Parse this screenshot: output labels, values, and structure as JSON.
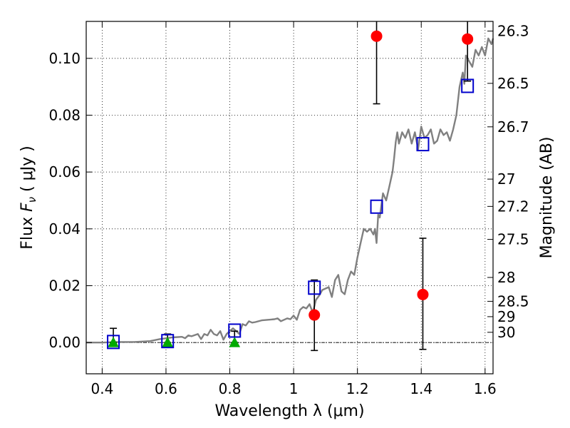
{
  "chart_data": {
    "type": "scatter",
    "xlabel": "Wavelength  λ (μm)",
    "ylabel": "Flux  F_ν  ( μJy )",
    "ylabel_parts": {
      "pre": "Flux  ",
      "var": "F",
      "sub": "ν",
      "post": "  ( μJy )"
    },
    "y2label": "Magnitude (AB)",
    "xlim": [
      0.35,
      1.625
    ],
    "ylim": [
      -0.011,
      0.113
    ],
    "grid": true,
    "x_ticks": [
      0.4,
      0.6,
      0.8,
      1.0,
      1.2,
      1.4,
      1.6
    ],
    "x_tick_labels": [
      "0.4",
      "0.6",
      "0.8",
      "1",
      "1.2",
      "1.4",
      "1.6"
    ],
    "y_ticks": [
      0.0,
      0.02,
      0.04,
      0.06,
      0.08,
      0.1
    ],
    "y_tick_labels": [
      "0.00",
      "0.02",
      "0.04",
      "0.06",
      "0.08",
      "0.10"
    ],
    "mag_ticks": [
      {
        "label": "26.3",
        "flux": 0.1096
      },
      {
        "label": "26.5",
        "flux": 0.0912
      },
      {
        "label": "26.7",
        "flux": 0.0759
      },
      {
        "label": "27",
        "flux": 0.0575
      },
      {
        "label": "27.2",
        "flux": 0.0479
      },
      {
        "label": "27.5",
        "flux": 0.0363
      },
      {
        "label": "28",
        "flux": 0.0229
      },
      {
        "label": "28.5",
        "flux": 0.0145
      },
      {
        "label": "29",
        "flux": 0.0091
      },
      {
        "label": "30",
        "flux": 0.0036
      }
    ],
    "spectrum": {
      "color": "#808080",
      "x": [
        0.35,
        0.4,
        0.45,
        0.5,
        0.55,
        0.58,
        0.6,
        0.62,
        0.65,
        0.66,
        0.67,
        0.68,
        0.7,
        0.71,
        0.72,
        0.73,
        0.74,
        0.75,
        0.76,
        0.77,
        0.78,
        0.79,
        0.8,
        0.81,
        0.82,
        0.83,
        0.84,
        0.85,
        0.86,
        0.87,
        0.88,
        0.9,
        0.92,
        0.94,
        0.95,
        0.96,
        0.98,
        0.99,
        1.0,
        1.01,
        1.02,
        1.03,
        1.04,
        1.05,
        1.06,
        1.07,
        1.08,
        1.09,
        1.1,
        1.11,
        1.12,
        1.13,
        1.14,
        1.15,
        1.16,
        1.17,
        1.18,
        1.19,
        1.2,
        1.21,
        1.22,
        1.23,
        1.24,
        1.25,
        1.255,
        1.26,
        1.265,
        1.27,
        1.28,
        1.29,
        1.3,
        1.31,
        1.315,
        1.32,
        1.325,
        1.33,
        1.34,
        1.35,
        1.36,
        1.37,
        1.38,
        1.39,
        1.4,
        1.41,
        1.42,
        1.43,
        1.44,
        1.45,
        1.46,
        1.47,
        1.48,
        1.49,
        1.5,
        1.51,
        1.52,
        1.53,
        1.535,
        1.54,
        1.55,
        1.56,
        1.57,
        1.58,
        1.59,
        1.6,
        1.61,
        1.62,
        1.625
      ],
      "y": [
        0.0,
        0.0,
        0.0002,
        0.0002,
        0.0005,
        0.0012,
        0.0015,
        0.0018,
        0.002,
        0.0015,
        0.0025,
        0.0022,
        0.003,
        0.0012,
        0.003,
        0.0025,
        0.0045,
        0.003,
        0.0025,
        0.004,
        0.001,
        0.003,
        0.004,
        0.005,
        0.004,
        0.003,
        0.0065,
        0.006,
        0.0075,
        0.007,
        0.0072,
        0.0078,
        0.008,
        0.0082,
        0.0085,
        0.0075,
        0.0085,
        0.0082,
        0.0095,
        0.008,
        0.0115,
        0.0125,
        0.012,
        0.0135,
        0.0105,
        0.015,
        0.0165,
        0.0185,
        0.019,
        0.0195,
        0.016,
        0.022,
        0.0238,
        0.018,
        0.017,
        0.022,
        0.025,
        0.0238,
        0.03,
        0.035,
        0.04,
        0.039,
        0.04,
        0.038,
        0.04,
        0.035,
        0.045,
        0.044,
        0.0525,
        0.05,
        0.055,
        0.06,
        0.065,
        0.0705,
        0.074,
        0.07,
        0.074,
        0.072,
        0.075,
        0.07,
        0.074,
        0.068,
        0.076,
        0.072,
        0.073,
        0.075,
        0.07,
        0.071,
        0.075,
        0.073,
        0.074,
        0.071,
        0.075,
        0.08,
        0.09,
        0.095,
        0.091,
        0.101,
        0.099,
        0.097,
        0.103,
        0.101,
        0.104,
        0.101,
        0.107,
        0.105,
        0.107
      ]
    },
    "green_triangles": {
      "color": "#00aa00",
      "x": [
        0.435,
        0.605,
        0.815
      ],
      "y": [
        0.0,
        0.0,
        0.0
      ]
    },
    "blue_squares": {
      "color": "#0000cc",
      "x": [
        0.435,
        0.605,
        0.815,
        1.065,
        1.26,
        1.405,
        1.545
      ],
      "y": [
        0.0002,
        0.0005,
        0.0042,
        0.0193,
        0.0478,
        0.0698,
        0.0903
      ]
    },
    "red_circles": {
      "color": "#ff0000",
      "x": [
        1.065,
        1.26,
        1.405,
        1.545
      ],
      "y": [
        0.0097,
        0.1078,
        0.0169,
        0.1068
      ],
      "err_low": [
        0.0125,
        0.0238,
        0.0193,
        0.0148
      ],
      "err_high": [
        0.0123,
        0.0122,
        0.0198,
        0.0102
      ]
    },
    "black_errorbars": {
      "x": [
        0.435,
        0.605,
        0.815
      ],
      "y": [
        0.0,
        0.0,
        0.0
      ],
      "err_low": [
        0.0,
        0.0,
        0.0
      ],
      "err_high": [
        0.005,
        0.003,
        0.004
      ]
    }
  }
}
